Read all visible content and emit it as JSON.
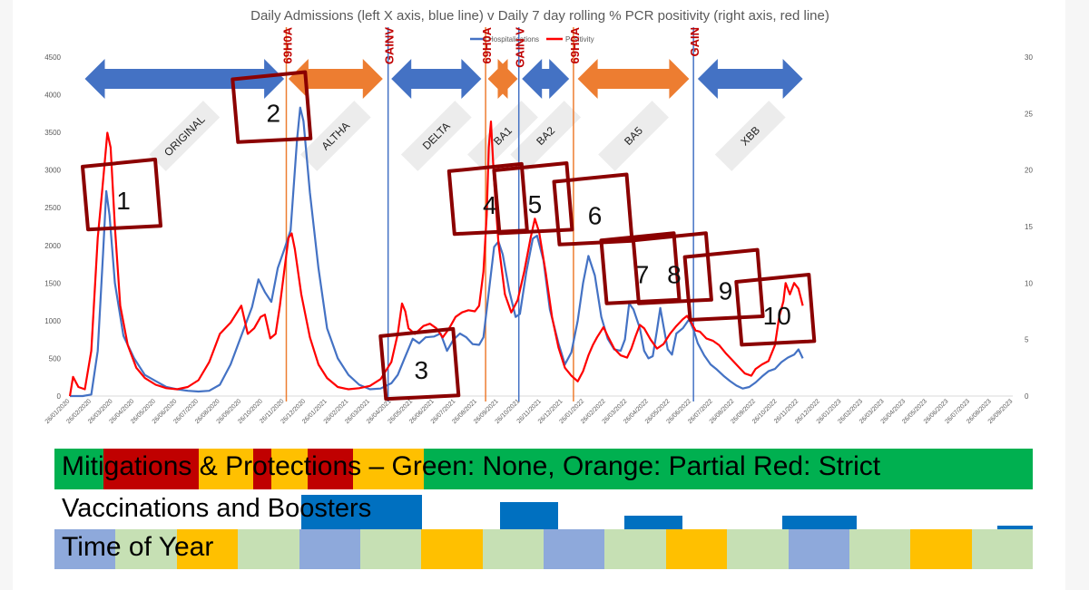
{
  "chart_data": {
    "type": "line",
    "title": "Daily Admissions (left X axis, blue line) v Daily 7 day rolling % PCR positivity (right axis, red line)",
    "legend": [
      "Hospitalisations",
      "Positivity"
    ],
    "legend_position": "top-center",
    "grid": false,
    "y_left": {
      "min": 0,
      "max": 4500,
      "ticks": [
        "0",
        "500",
        "1000",
        "1500",
        "2000",
        "2500",
        "3000",
        "3500",
        "4000",
        "4500"
      ]
    },
    "y_right": {
      "min": 0,
      "max": 30,
      "ticks": [
        "0",
        "5",
        "10",
        "15",
        "20",
        "25",
        "30"
      ]
    },
    "x_ticks": [
      "26/01/2020",
      "26/02/2020",
      "26/03/2020",
      "26/04/2020",
      "26/05/2020",
      "26/06/2020",
      "26/07/2020",
      "26/08/2020",
      "26/09/2020",
      "26/10/2020",
      "26/11/2020",
      "26/12/2020",
      "26/01/2021",
      "26/02/2021",
      "26/03/2021",
      "26/04/2021",
      "26/05/2021",
      "26/06/2021",
      "26/07/2021",
      "26/08/2021",
      "26/09/2021",
      "26/10/2021",
      "26/11/2021",
      "26/12/2021",
      "26/01/2022",
      "26/02/2022",
      "26/03/2022",
      "26/04/2022",
      "26/05/2022",
      "26/06/2022",
      "26/07/2022",
      "26/08/2022",
      "26/09/2022",
      "26/10/2022",
      "26/11/2022",
      "26/12/2022",
      "26/01/2023",
      "26/02/2023",
      "26/03/2023",
      "26/04/2023",
      "26/05/2023",
      "26/06/2023",
      "26/07/2023",
      "26/08/2023",
      "26/09/2023"
    ],
    "series": [
      {
        "name": "Hospitalisations",
        "axis": "left",
        "color": "#4472C4",
        "points": [
          [
            0,
            0
          ],
          [
            0.6,
            0
          ],
          [
            1,
            20
          ],
          [
            1.3,
            600
          ],
          [
            1.55,
            1900
          ],
          [
            1.7,
            2720
          ],
          [
            1.85,
            2400
          ],
          [
            2.1,
            1500
          ],
          [
            2.5,
            800
          ],
          [
            3,
            500
          ],
          [
            3.5,
            280
          ],
          [
            4,
            200
          ],
          [
            4.5,
            120
          ],
          [
            5,
            90
          ],
          [
            5.5,
            70
          ],
          [
            6,
            60
          ],
          [
            6.5,
            70
          ],
          [
            7,
            150
          ],
          [
            7.5,
            420
          ],
          [
            8,
            800
          ],
          [
            8.5,
            1180
          ],
          [
            8.8,
            1550
          ],
          [
            9.1,
            1380
          ],
          [
            9.4,
            1250
          ],
          [
            9.7,
            1700
          ],
          [
            10,
            1940
          ],
          [
            10.3,
            2200
          ],
          [
            10.6,
            3400
          ],
          [
            10.75,
            3830
          ],
          [
            10.9,
            3650
          ],
          [
            11.2,
            2700
          ],
          [
            11.6,
            1700
          ],
          [
            12,
            900
          ],
          [
            12.5,
            500
          ],
          [
            13,
            280
          ],
          [
            13.5,
            150
          ],
          [
            14,
            90
          ],
          [
            14.5,
            100
          ],
          [
            15,
            170
          ],
          [
            15.3,
            280
          ],
          [
            15.6,
            490
          ],
          [
            16,
            760
          ],
          [
            16.3,
            700
          ],
          [
            16.6,
            780
          ],
          [
            17,
            790
          ],
          [
            17.3,
            830
          ],
          [
            17.6,
            600
          ],
          [
            17.9,
            750
          ],
          [
            18.2,
            830
          ],
          [
            18.5,
            780
          ],
          [
            18.8,
            690
          ],
          [
            19.1,
            680
          ],
          [
            19.3,
            780
          ],
          [
            19.6,
            1500
          ],
          [
            19.8,
            1980
          ],
          [
            20,
            2050
          ],
          [
            20.2,
            1880
          ],
          [
            20.5,
            1400
          ],
          [
            20.8,
            1050
          ],
          [
            21,
            1090
          ],
          [
            21.3,
            1650
          ],
          [
            21.6,
            2090
          ],
          [
            21.8,
            2130
          ],
          [
            22.1,
            1800
          ],
          [
            22.4,
            1150
          ],
          [
            22.8,
            700
          ],
          [
            23.1,
            420
          ],
          [
            23.4,
            580
          ],
          [
            23.7,
            1000
          ],
          [
            23.95,
            1500
          ],
          [
            24.2,
            1860
          ],
          [
            24.5,
            1600
          ],
          [
            24.8,
            1050
          ],
          [
            25.1,
            760
          ],
          [
            25.4,
            620
          ],
          [
            25.7,
            600
          ],
          [
            25.9,
            750
          ],
          [
            26.1,
            1230
          ],
          [
            26.3,
            1150
          ],
          [
            26.6,
            900
          ],
          [
            26.8,
            600
          ],
          [
            27,
            500
          ],
          [
            27.2,
            530
          ],
          [
            27.4,
            880
          ],
          [
            27.55,
            1170
          ],
          [
            27.7,
            930
          ],
          [
            27.9,
            620
          ],
          [
            28.1,
            550
          ],
          [
            28.3,
            830
          ],
          [
            28.6,
            900
          ],
          [
            28.9,
            1020
          ],
          [
            29.1,
            880
          ],
          [
            29.3,
            700
          ],
          [
            29.6,
            540
          ],
          [
            29.9,
            420
          ],
          [
            30.2,
            350
          ],
          [
            30.5,
            270
          ],
          [
            30.8,
            200
          ],
          [
            31.1,
            140
          ],
          [
            31.4,
            100
          ],
          [
            31.7,
            120
          ],
          [
            32,
            180
          ],
          [
            32.3,
            260
          ],
          [
            32.6,
            330
          ],
          [
            32.9,
            360
          ],
          [
            33.2,
            450
          ],
          [
            33.5,
            510
          ],
          [
            33.8,
            550
          ],
          [
            34,
            620
          ],
          [
            34.2,
            500
          ]
        ]
      },
      {
        "name": "Positivity",
        "axis": "right",
        "color": "#FF0000",
        "points": [
          [
            0,
            0
          ],
          [
            0.15,
            1.7
          ],
          [
            0.4,
            0.8
          ],
          [
            0.7,
            0.6
          ],
          [
            1,
            4
          ],
          [
            1.3,
            14
          ],
          [
            1.5,
            18
          ],
          [
            1.75,
            23.3
          ],
          [
            1.9,
            22
          ],
          [
            2.1,
            15
          ],
          [
            2.35,
            8
          ],
          [
            2.7,
            4.5
          ],
          [
            3.1,
            2.5
          ],
          [
            3.5,
            1.6
          ],
          [
            4,
            1
          ],
          [
            4.5,
            0.7
          ],
          [
            5,
            0.6
          ],
          [
            5.5,
            0.8
          ],
          [
            6,
            1.4
          ],
          [
            6.5,
            3
          ],
          [
            7,
            5.5
          ],
          [
            7.5,
            6.5
          ],
          [
            8,
            8
          ],
          [
            8.3,
            5.5
          ],
          [
            8.6,
            6
          ],
          [
            8.9,
            7
          ],
          [
            9.1,
            7.2
          ],
          [
            9.35,
            5.1
          ],
          [
            9.6,
            5.5
          ],
          [
            9.8,
            8
          ],
          [
            10,
            11
          ],
          [
            10.2,
            14
          ],
          [
            10.35,
            14.4
          ],
          [
            10.5,
            13
          ],
          [
            10.8,
            9
          ],
          [
            11.2,
            5.2
          ],
          [
            11.6,
            2.8
          ],
          [
            12,
            1.6
          ],
          [
            12.5,
            0.8
          ],
          [
            13,
            0.6
          ],
          [
            13.5,
            0.7
          ],
          [
            14,
            0.9
          ],
          [
            14.5,
            1.5
          ],
          [
            15,
            3
          ],
          [
            15.3,
            5.5
          ],
          [
            15.5,
            8.2
          ],
          [
            15.65,
            7.5
          ],
          [
            15.8,
            6
          ],
          [
            16.1,
            5.5
          ],
          [
            16.5,
            6.2
          ],
          [
            16.8,
            6.4
          ],
          [
            17.1,
            6
          ],
          [
            17.4,
            5.2
          ],
          [
            17.7,
            6
          ],
          [
            18,
            7
          ],
          [
            18.3,
            7.4
          ],
          [
            18.6,
            7.6
          ],
          [
            18.9,
            7.5
          ],
          [
            19.1,
            8
          ],
          [
            19.3,
            11
          ],
          [
            19.45,
            16
          ],
          [
            19.55,
            22
          ],
          [
            19.65,
            24.3
          ],
          [
            19.8,
            19
          ],
          [
            20,
            13.5
          ],
          [
            20.3,
            9
          ],
          [
            20.6,
            7.4
          ],
          [
            20.9,
            8.5
          ],
          [
            21.2,
            11
          ],
          [
            21.5,
            14
          ],
          [
            21.7,
            15.7
          ],
          [
            21.9,
            14.5
          ],
          [
            22.2,
            11
          ],
          [
            22.5,
            7
          ],
          [
            22.8,
            4.3
          ],
          [
            23.1,
            2.5
          ],
          [
            23.4,
            1.8
          ],
          [
            23.7,
            1.3
          ],
          [
            23.95,
            2.2
          ],
          [
            24.2,
            3.6
          ],
          [
            24.4,
            4.5
          ],
          [
            24.6,
            5.2
          ],
          [
            24.9,
            6.1
          ],
          [
            25.1,
            5.3
          ],
          [
            25.4,
            4.2
          ],
          [
            25.7,
            3.6
          ],
          [
            26,
            3.4
          ],
          [
            26.2,
            4.2
          ],
          [
            26.4,
            5.3
          ],
          [
            26.6,
            6.3
          ],
          [
            26.8,
            6
          ],
          [
            27.1,
            5
          ],
          [
            27.4,
            4.2
          ],
          [
            27.7,
            4.6
          ],
          [
            28,
            5.5
          ],
          [
            28.3,
            6.2
          ],
          [
            28.6,
            6.8
          ],
          [
            28.8,
            7.1
          ],
          [
            29,
            6.5
          ],
          [
            29.2,
            5.8
          ],
          [
            29.4,
            5.7
          ],
          [
            29.7,
            5.1
          ],
          [
            30,
            4.9
          ],
          [
            30.3,
            4.5
          ],
          [
            30.6,
            3.8
          ],
          [
            30.9,
            3.2
          ],
          [
            31.2,
            2.6
          ],
          [
            31.5,
            2
          ],
          [
            31.8,
            1.8
          ],
          [
            32,
            2.4
          ],
          [
            32.3,
            2.8
          ],
          [
            32.6,
            3.1
          ],
          [
            32.9,
            4.5
          ],
          [
            33.1,
            7
          ],
          [
            33.3,
            8.4
          ],
          [
            33.4,
            10
          ],
          [
            33.6,
            9
          ],
          [
            33.8,
            10
          ],
          [
            34,
            9.5
          ],
          [
            34.2,
            8
          ]
        ]
      }
    ],
    "vertical_lines": [
      {
        "label": "69H0A",
        "x": 10.1,
        "color": "#ED7D31"
      },
      {
        "label": "GAINV",
        "x": 14.85,
        "color": "#4472C4"
      },
      {
        "label": "69H0A",
        "x": 19.4,
        "color": "#ED7D31"
      },
      {
        "label": "GAIN V",
        "x": 20.95,
        "color": "#4472C4"
      },
      {
        "label": "69H0A",
        "x": 23.5,
        "color": "#ED7D31"
      },
      {
        "label": "GAIN",
        "x": 29.1,
        "color": "#4472C4"
      }
    ],
    "variant_periods": [
      {
        "label": "ORIGINAL",
        "x0": 0.7,
        "x1": 10.0,
        "color": "#4472C4"
      },
      {
        "label": "ALTHA",
        "x0": 10.2,
        "x1": 14.6,
        "color": "#ED7D31"
      },
      {
        "label": "DELTA",
        "x0": 15.0,
        "x1": 19.2,
        "color": "#4472C4"
      },
      {
        "label": "BA1",
        "x0": 19.5,
        "x1": 20.9,
        "color": "#ED7D31"
      },
      {
        "label": "BA2",
        "x0": 21.1,
        "x1": 23.3,
        "color": "#4472C4"
      },
      {
        "label": "BA5",
        "x0": 23.7,
        "x1": 28.9,
        "color": "#ED7D31"
      },
      {
        "label": "XBB",
        "x0": 29.3,
        "x1": 34.2,
        "color": "#4472C4"
      }
    ],
    "annotations": [
      {
        "label": "1",
        "x": 2.5,
        "y": 2480
      },
      {
        "label": "2",
        "x": 9.5,
        "y": 3640
      },
      {
        "label": "3",
        "x": 16.4,
        "y": 230
      },
      {
        "label": "4",
        "x": 19.6,
        "y": 2420
      },
      {
        "label": "5",
        "x": 21.7,
        "y": 2430
      },
      {
        "label": "6",
        "x": 24.5,
        "y": 2280
      },
      {
        "label": "7",
        "x": 26.7,
        "y": 1500
      },
      {
        "label": "8",
        "x": 28.2,
        "y": 1500
      },
      {
        "label": "9",
        "x": 30.6,
        "y": 1280
      },
      {
        "label": "10",
        "x": 33.0,
        "y": 950
      }
    ]
  },
  "bands": {
    "mitigations": {
      "label": "Mitigations & Protections – Green: None, Orange: Partial Red: Strict",
      "segments": [
        {
          "color": "#00B050",
          "weight": 54
        },
        {
          "color": "#C00000",
          "weight": 105
        },
        {
          "color": "#FFC000",
          "weight": 60
        },
        {
          "color": "#C00000",
          "weight": 20
        },
        {
          "color": "#FFC000",
          "weight": 40
        },
        {
          "color": "#C00000",
          "weight": 50
        },
        {
          "color": "#FFC000",
          "weight": 78
        },
        {
          "color": "#00B050",
          "weight": 671
        }
      ]
    },
    "vaccinations": {
      "label": "Vaccinations and Boosters",
      "bars": [
        {
          "color": "#0070C0",
          "x0": 332,
          "x1": 465,
          "level": 1.0
        },
        {
          "color": "#0070C0",
          "x0": 551,
          "x1": 615,
          "level": 0.8
        },
        {
          "color": "#0070C0",
          "x0": 688,
          "x1": 752,
          "level": 0.4
        },
        {
          "color": "#0070C0",
          "x0": 862,
          "x1": 944,
          "level": 0.4
        },
        {
          "color": "#0070C0",
          "x0": 1099,
          "x1": 1138,
          "level": 0.1
        }
      ]
    },
    "time_of_year": {
      "label": "Time of Year",
      "segments": [
        "#8EA9DB",
        "#C6E0B4",
        "#FFC000",
        "#C6E0B4",
        "#8EA9DB",
        "#C6E0B4",
        "#FFC000",
        "#C6E0B4",
        "#8EA9DB",
        "#C6E0B4",
        "#FFC000",
        "#C6E0B4",
        "#8EA9DB",
        "#C6E0B4",
        "#FFC000",
        "#C6E0B4"
      ]
    }
  }
}
